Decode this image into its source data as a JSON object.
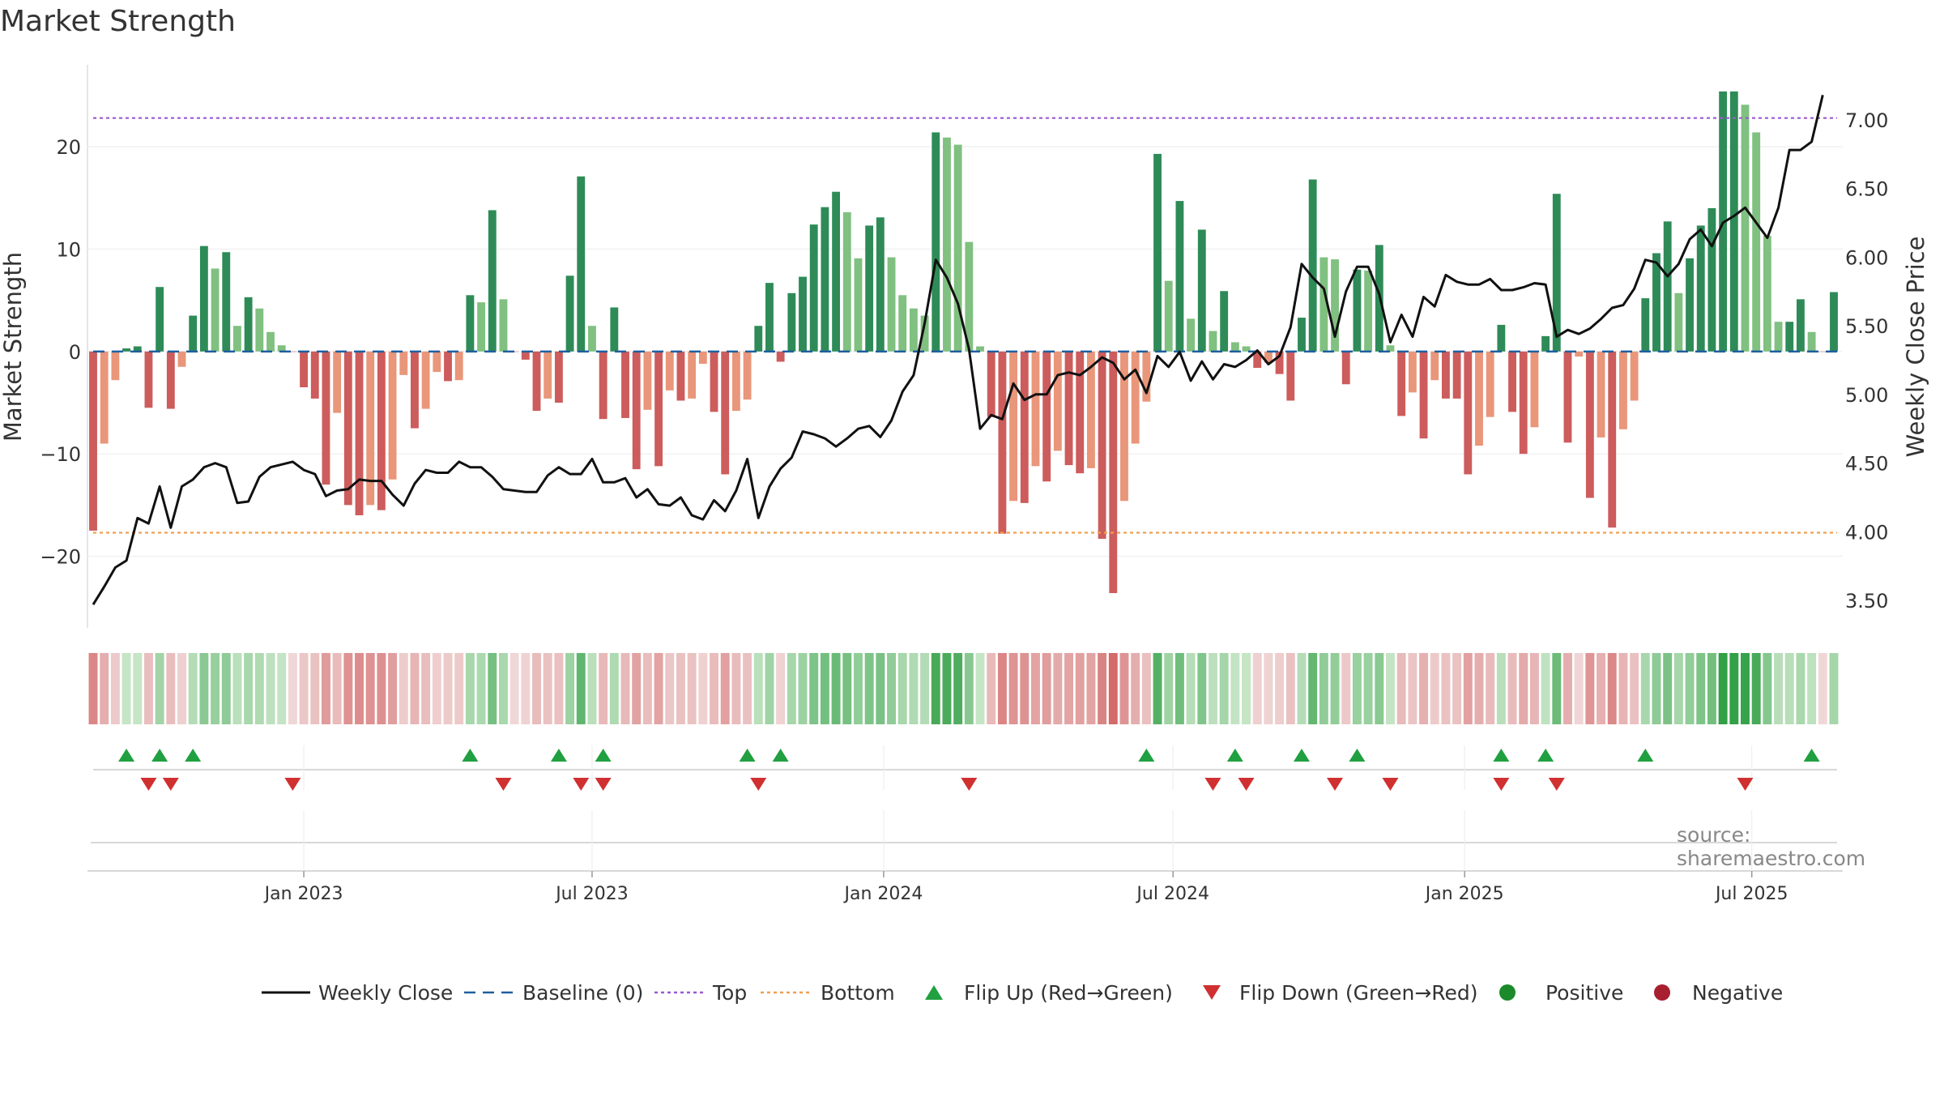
{
  "title": "Market Strength",
  "source": "source: sharemaestro.com",
  "chart_data": {
    "type": "bar",
    "start_date": "2022-08-21",
    "ylabel_left": "Market Strength",
    "ylabel_right": "Weekly Close Price",
    "ylim_left": [
      -27,
      28
    ],
    "ylim_right": [
      3.3,
      7.4
    ],
    "yticks_left": [
      -20,
      -10,
      0,
      10,
      20
    ],
    "ytick_labels_left": [
      "−20",
      "−10",
      "0",
      "10",
      "20"
    ],
    "yticks_right": [
      3.5,
      4.0,
      4.5,
      5.0,
      5.5,
      6.0,
      6.5,
      7.0
    ],
    "ytick_labels_right": [
      "3.50",
      "4.00",
      "4.50",
      "5.00",
      "5.50",
      "6.00",
      "6.50",
      "7.00"
    ],
    "x_ticks": [
      {
        "label": "Jan 2023",
        "week": 19
      },
      {
        "label": "Jul 2023",
        "week": 45
      },
      {
        "label": "Jan 2024",
        "week": 71.3
      },
      {
        "label": "Jul 2024",
        "week": 97.4
      },
      {
        "label": "Jan 2025",
        "week": 123.7
      },
      {
        "label": "Jul 2025",
        "week": 149.6
      }
    ],
    "top_level": 22.8,
    "bottom_level": -17.7,
    "colors": {
      "pos_strong": "#2e8b57",
      "pos_weak": "#80c080",
      "neg_strong": "#cd5c5c",
      "neg_weak": "#e9967a",
      "close_line": "#111111",
      "baseline": "#1f5fa0",
      "top": "#9b59d0",
      "bottom": "#f0a050",
      "flip_up": "#20a040",
      "flip_down": "#d03030",
      "positive_dot": "#1a8a2a",
      "negative_dot": "#a82030"
    },
    "strength": [
      -17.5,
      -9,
      -2.8,
      0.3,
      0.5,
      -5.5,
      6.3,
      -5.6,
      -1.5,
      3.5,
      10.3,
      8.1,
      9.7,
      2.5,
      5.3,
      4.2,
      1.9,
      0.6,
      0,
      -3.5,
      -4.6,
      -13,
      -6,
      -15,
      -16,
      -15,
      -15.5,
      -12.5,
      -2.3,
      -7.5,
      -5.6,
      -2,
      -2.9,
      -2.8,
      5.5,
      4.8,
      13.8,
      5.1,
      0,
      -0.8,
      -5.8,
      -4.6,
      -5,
      7.4,
      17.1,
      2.5,
      -6.6,
      4.3,
      -6.5,
      -11.5,
      -5.7,
      -11.2,
      -3.8,
      -4.8,
      -4.6,
      -1.2,
      -5.9,
      -12,
      -5.8,
      -4.7,
      2.5,
      6.7,
      -1,
      5.7,
      7.3,
      12.4,
      14.1,
      15.6,
      13.6,
      9.1,
      12.3,
      13.1,
      9.2,
      5.5,
      4.2,
      3.5,
      21.4,
      20.9,
      20.2,
      10.7,
      0.5,
      -6.4,
      -17.8,
      -14.6,
      -14.8,
      -11.2,
      -12.7,
      -9.7,
      -11.1,
      -11.9,
      -11.4,
      -18.3,
      -23.6,
      -14.6,
      -9,
      -4.9,
      19.3,
      6.9,
      14.7,
      3.2,
      11.9,
      2,
      5.9,
      0.9,
      0.5,
      -1.6,
      -1.1,
      -2.2,
      -4.8,
      3.3,
      16.8,
      9.2,
      9,
      -3.2,
      8,
      7.9,
      10.4,
      0.6,
      -6.3,
      -4,
      -8.5,
      -2.8,
      -4.6,
      -4.6,
      -12,
      -9.2,
      -6.4,
      2.6,
      -5.9,
      -10,
      -7.4,
      1.5,
      15.4,
      -8.9,
      -0.5,
      -14.3,
      -8.4,
      -17.2,
      -7.6,
      -4.8,
      5.2,
      9.6,
      12.7,
      5.7,
      9.1,
      12.3,
      14,
      25.4,
      25.4,
      24.1,
      21.4,
      11.3,
      2.9,
      2.9,
      5.1,
      1.9,
      0,
      5.8
    ],
    "close": [
      3.47,
      3.6,
      3.74,
      3.79,
      4.1,
      4.06,
      4.33,
      4.03,
      4.33,
      4.38,
      4.47,
      4.5,
      4.47,
      4.21,
      4.22,
      4.4,
      4.47,
      4.49,
      4.51,
      4.45,
      4.42,
      4.26,
      4.3,
      4.31,
      4.38,
      4.37,
      4.37,
      4.27,
      4.19,
      4.35,
      4.45,
      4.43,
      4.43,
      4.51,
      4.47,
      4.47,
      4.4,
      4.31,
      4.3,
      4.29,
      4.29,
      4.41,
      4.47,
      4.42,
      4.42,
      4.53,
      4.36,
      4.36,
      4.39,
      4.25,
      4.31,
      4.2,
      4.19,
      4.25,
      4.12,
      4.09,
      4.23,
      4.15,
      4.3,
      4.53,
      4.1,
      4.33,
      4.46,
      4.54,
      4.73,
      4.71,
      4.68,
      4.62,
      4.68,
      4.75,
      4.77,
      4.69,
      4.81,
      5.02,
      5.14,
      5.52,
      5.98,
      5.85,
      5.66,
      5.33,
      4.75,
      4.85,
      4.82,
      5.08,
      4.96,
      5.0,
      5.0,
      5.14,
      5.16,
      5.14,
      5.2,
      5.27,
      5.23,
      5.11,
      5.18,
      5.01,
      5.28,
      5.2,
      5.31,
      5.1,
      5.24,
      5.11,
      5.22,
      5.2,
      5.25,
      5.32,
      5.22,
      5.28,
      5.49,
      5.95,
      5.85,
      5.77,
      5.42,
      5.75,
      5.93,
      5.93,
      5.73,
      5.38,
      5.58,
      5.42,
      5.71,
      5.64,
      5.87,
      5.82,
      5.8,
      5.8,
      5.84,
      5.76,
      5.76,
      5.78,
      5.81,
      5.8,
      5.42,
      5.47,
      5.44,
      5.48,
      5.55,
      5.63,
      5.65,
      5.77,
      5.98,
      5.96,
      5.86,
      5.95,
      6.13,
      6.2,
      6.08,
      6.25,
      6.3,
      6.36,
      6.25,
      6.14,
      6.36,
      6.78,
      6.78,
      6.84,
      7.18
    ],
    "flip_up_weeks": [
      3,
      6,
      9,
      34,
      42,
      46,
      59,
      62,
      95,
      103,
      109,
      114,
      127,
      131,
      140,
      155
    ],
    "flip_down_weeks": [
      5,
      7,
      18,
      37,
      44,
      46,
      60,
      79,
      101,
      104,
      112,
      117,
      127,
      132,
      149
    ],
    "legend": [
      {
        "label": "Weekly Close",
        "kind": "line"
      },
      {
        "label": "Baseline (0)",
        "kind": "dash"
      },
      {
        "label": "Top",
        "kind": "dot-purple"
      },
      {
        "label": "Bottom",
        "kind": "dot-orange"
      },
      {
        "label": "Flip Up (Red→Green)",
        "kind": "tri-up"
      },
      {
        "label": "Flip Down (Green→Red)",
        "kind": "tri-down"
      },
      {
        "label": "Positive",
        "kind": "dot-green"
      },
      {
        "label": "Negative",
        "kind": "dot-red"
      }
    ]
  }
}
